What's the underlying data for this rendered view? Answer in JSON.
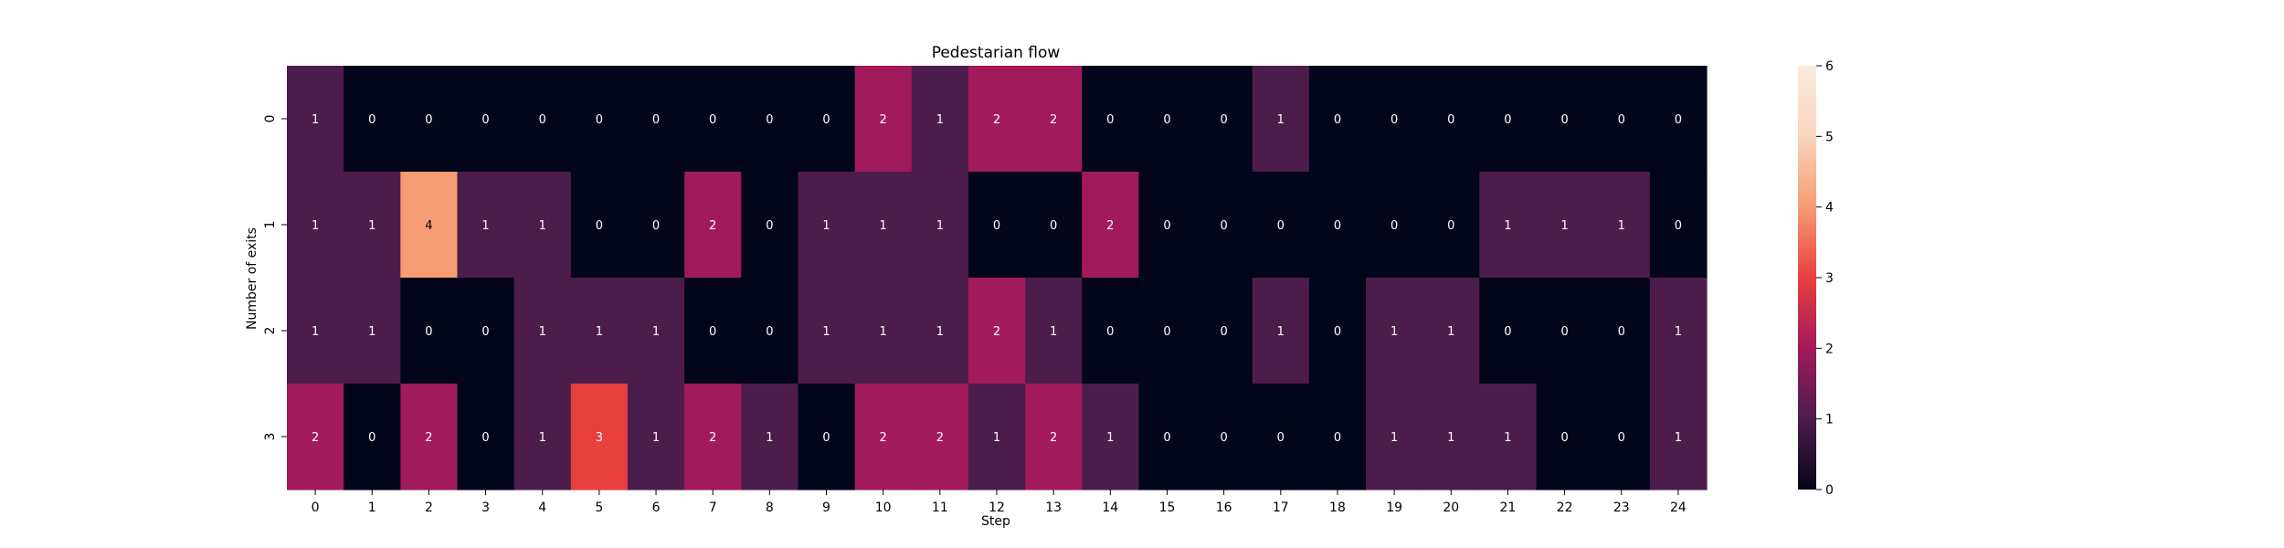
{
  "chart_data": {
    "type": "heatmap",
    "title": "Pedestarian flow",
    "xlabel": "Step",
    "ylabel": "Number of exits",
    "x_categories": [
      "0",
      "1",
      "2",
      "3",
      "4",
      "5",
      "6",
      "7",
      "8",
      "9",
      "10",
      "11",
      "12",
      "13",
      "14",
      "15",
      "16",
      "17",
      "18",
      "19",
      "20",
      "21",
      "22",
      "23",
      "24"
    ],
    "y_categories": [
      "0",
      "1",
      "2",
      "3"
    ],
    "values": [
      [
        1,
        0,
        0,
        0,
        0,
        0,
        0,
        0,
        0,
        0,
        2,
        1,
        2,
        2,
        0,
        0,
        0,
        1,
        0,
        0,
        0,
        0,
        0,
        0,
        0
      ],
      [
        1,
        1,
        4,
        1,
        1,
        0,
        0,
        2,
        0,
        1,
        1,
        1,
        0,
        0,
        2,
        0,
        0,
        0,
        0,
        0,
        0,
        1,
        1,
        1,
        0
      ],
      [
        1,
        1,
        0,
        0,
        1,
        1,
        1,
        0,
        0,
        1,
        1,
        1,
        2,
        1,
        0,
        0,
        0,
        1,
        0,
        1,
        1,
        0,
        0,
        0,
        1
      ],
      [
        2,
        0,
        2,
        0,
        1,
        3,
        1,
        2,
        1,
        0,
        2,
        2,
        1,
        2,
        1,
        0,
        0,
        0,
        0,
        1,
        1,
        1,
        0,
        0,
        1
      ]
    ],
    "colorbar": {
      "min": 0,
      "max": 6,
      "ticks": [
        "0",
        "1",
        "2",
        "3",
        "4",
        "5",
        "6"
      ]
    },
    "colormap": "rocket",
    "annotations": true,
    "grid": false
  }
}
